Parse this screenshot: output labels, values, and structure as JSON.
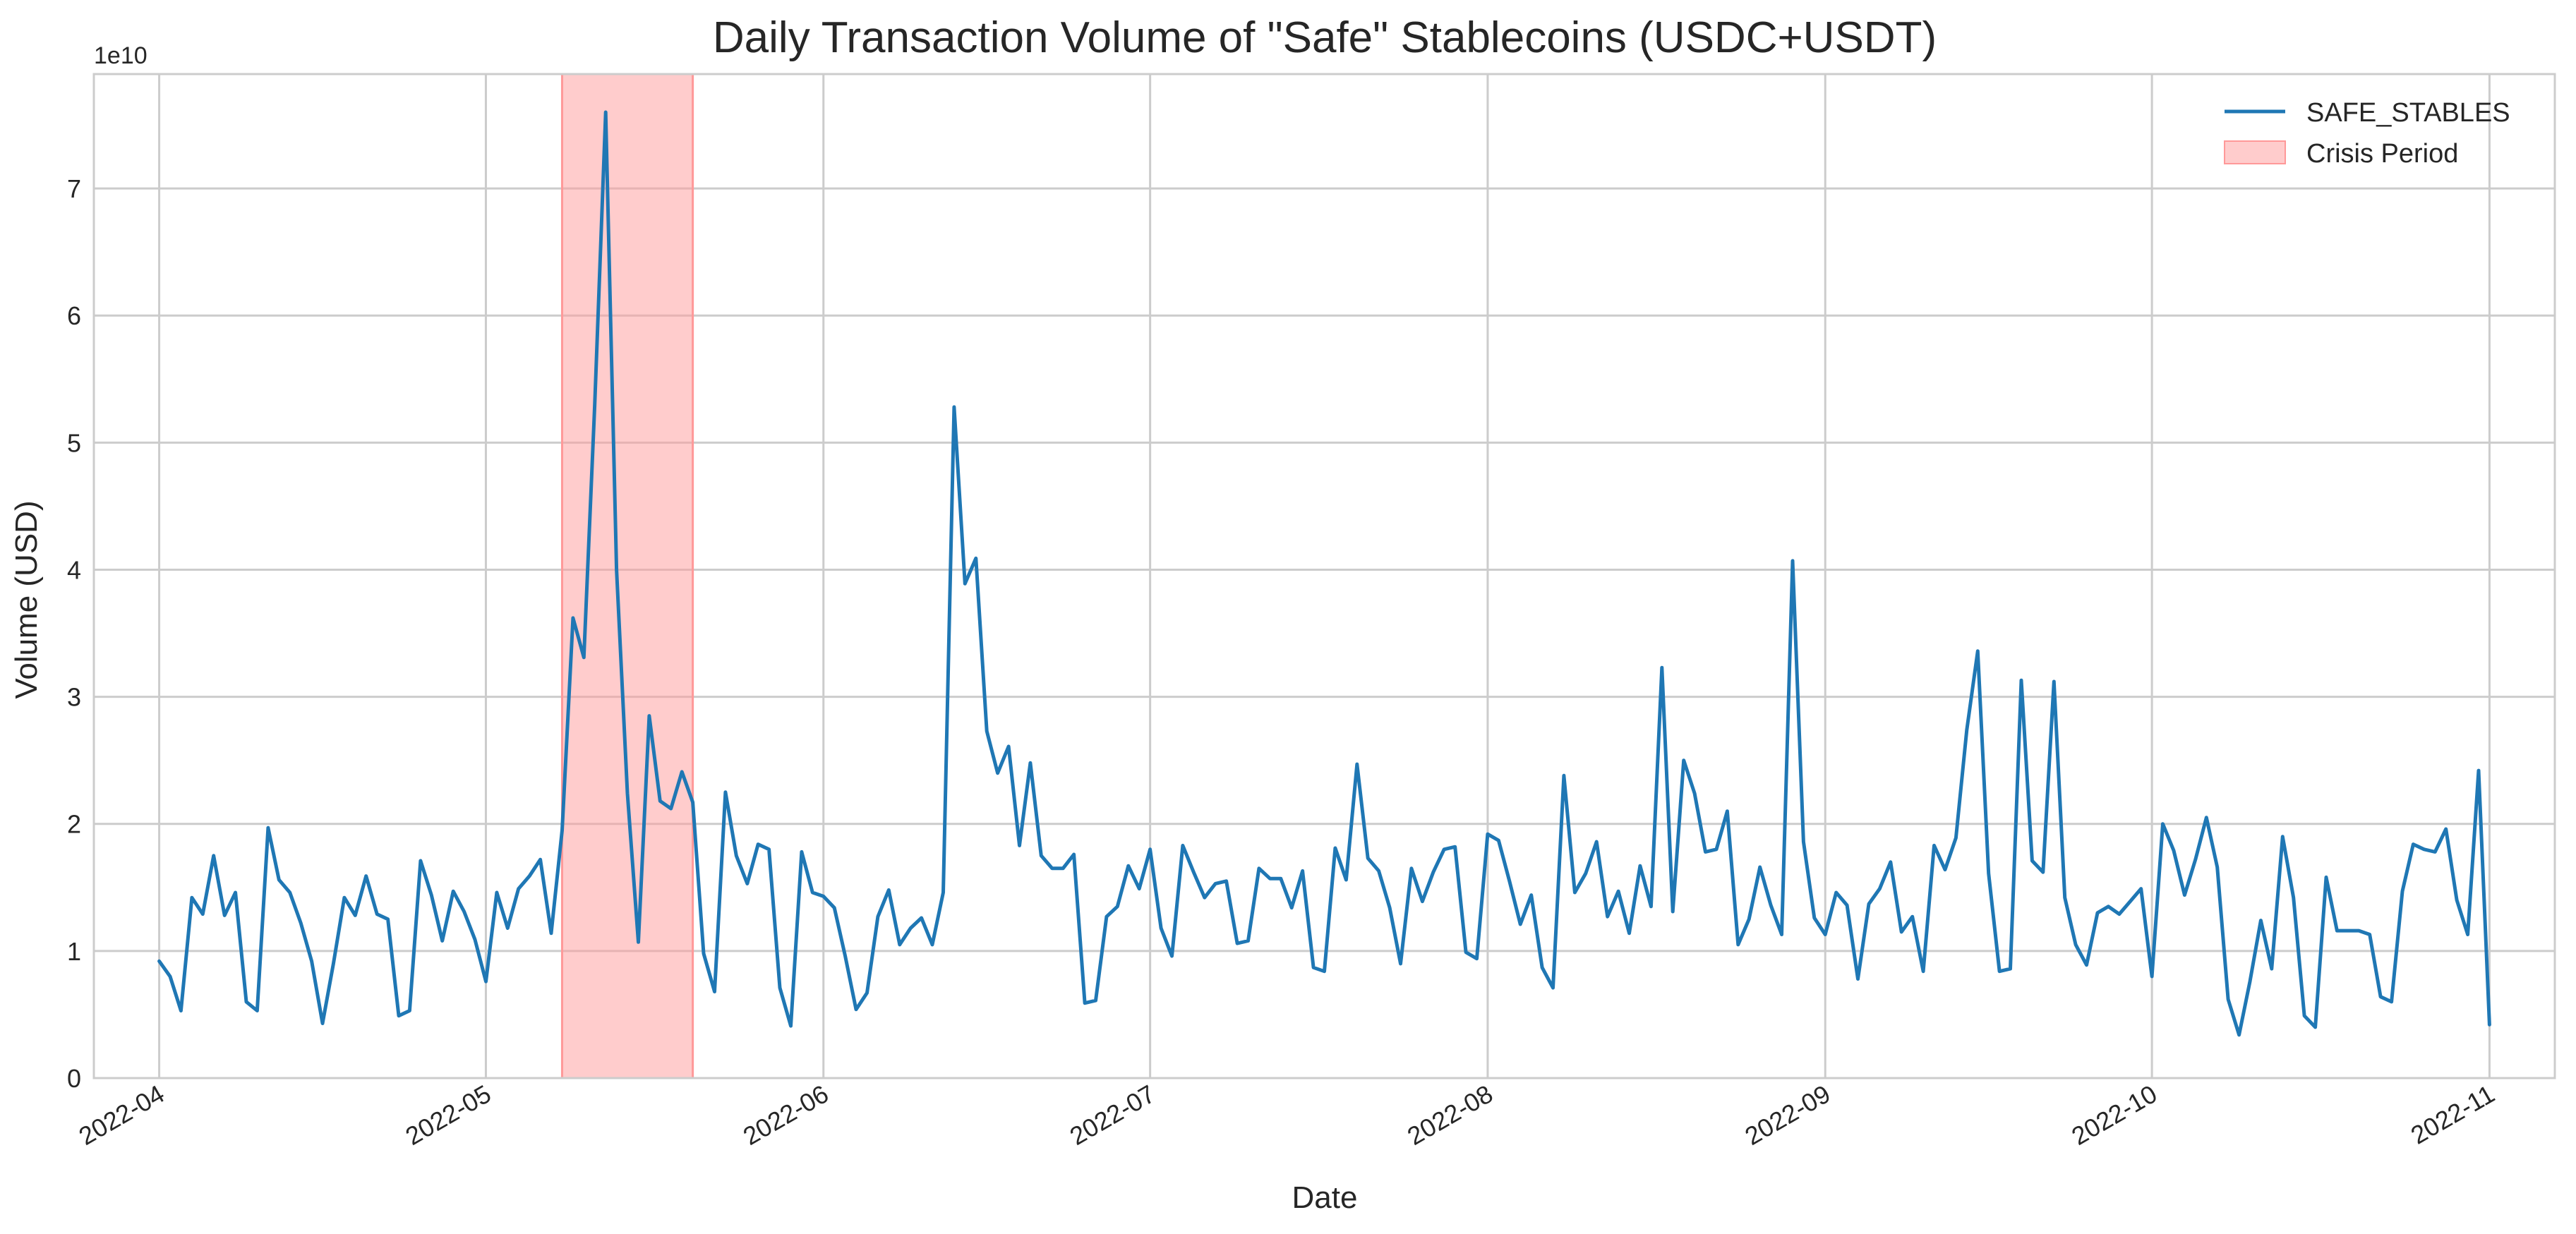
{
  "chart_data": {
    "type": "line",
    "title": "Daily Transaction Volume of \"Safe\" Stablecoins (USDC+USDT)",
    "xlabel": "Date",
    "ylabel": "Volume (USD)",
    "y_offset_label": "1e10",
    "y_scale_factor": 10000000000,
    "xlim": [
      "2022-03-26",
      "2022-11-07"
    ],
    "ylim": [
      0,
      79000000000
    ],
    "grid": true,
    "legend_position": "top-right",
    "x_ticks": [
      {
        "date": "2022-04-01",
        "label": "2022-04"
      },
      {
        "date": "2022-05-01",
        "label": "2022-05"
      },
      {
        "date": "2022-06-01",
        "label": "2022-06"
      },
      {
        "date": "2022-07-01",
        "label": "2022-07"
      },
      {
        "date": "2022-08-01",
        "label": "2022-08"
      },
      {
        "date": "2022-09-01",
        "label": "2022-09"
      },
      {
        "date": "2022-10-01",
        "label": "2022-10"
      },
      {
        "date": "2022-11-01",
        "label": "2022-11"
      }
    ],
    "y_ticks": [
      {
        "value": 0,
        "label": "0"
      },
      {
        "value": 10000000000,
        "label": "1"
      },
      {
        "value": 20000000000,
        "label": "2"
      },
      {
        "value": 30000000000,
        "label": "3"
      },
      {
        "value": 40000000000,
        "label": "4"
      },
      {
        "value": 50000000000,
        "label": "5"
      },
      {
        "value": 60000000000,
        "label": "6"
      },
      {
        "value": 70000000000,
        "label": "7"
      }
    ],
    "shaded_regions": [
      {
        "name": "Crisis Period",
        "start": "2022-05-08",
        "end": "2022-05-20",
        "color": "#ff9999"
      }
    ],
    "series": [
      {
        "name": "SAFE_STABLES",
        "color": "#1f77b4",
        "start_date": "2022-04-01",
        "values": [
          9200000000.0,
          8000000000.0,
          5300000000.0,
          14200000000.0,
          12900000000.0,
          17500000000.0,
          12800000000.0,
          14600000000.0,
          6000000000.0,
          5300000000.0,
          19700000000.0,
          15600000000.0,
          14600000000.0,
          12200000000.0,
          9200000000.0,
          4300000000.0,
          9000000000.0,
          14200000000.0,
          12800000000.0,
          15900000000.0,
          12900000000.0,
          12500000000.0,
          4900000000.0,
          5300000000.0,
          17100000000.0,
          14400000000.0,
          10800000000.0,
          14700000000.0,
          13100000000.0,
          10900000000.0,
          7600000000.0,
          14600000000.0,
          11800000000.0,
          14900000000.0,
          15900000000.0,
          17200000000.0,
          11400000000.0,
          19500000000.0,
          36200000000.0,
          33100000000.0,
          53000000000.0,
          76000000000.0,
          40000000000.0,
          22400000000.0,
          10700000000.0,
          28500000000.0,
          21800000000.0,
          21200000000.0,
          24100000000.0,
          21700000000.0,
          9800000000.0,
          6800000000.0,
          22500000000.0,
          17500000000.0,
          15300000000.0,
          18400000000.0,
          18000000000.0,
          7100000000.0,
          4100000000.0,
          17800000000.0,
          14600000000.0,
          14300000000.0,
          13400000000.0,
          9600000000.0,
          5400000000.0,
          6700000000.0,
          12700000000.0,
          14800000000.0,
          10500000000.0,
          11800000000.0,
          12600000000.0,
          10500000000.0,
          14600000000.0,
          52800000000.0,
          38900000000.0,
          40900000000.0,
          27300000000.0,
          24000000000.0,
          26100000000.0,
          18300000000.0,
          24800000000.0,
          17500000000.0,
          16500000000.0,
          16500000000.0,
          17600000000.0,
          5900000000.0,
          6100000000.0,
          12700000000.0,
          13500000000.0,
          16700000000.0,
          14900000000.0,
          18000000000.0,
          11800000000.0,
          9600000000.0,
          18300000000.0,
          16200000000.0,
          14200000000.0,
          15300000000.0,
          15500000000.0,
          10600000000.0,
          10800000000.0,
          16500000000.0,
          15700000000.0,
          15700000000.0,
          13400000000.0,
          16300000000.0,
          8700000000.0,
          8400000000.0,
          18100000000.0,
          15600000000.0,
          24700000000.0,
          17300000000.0,
          16300000000.0,
          13400000000.0,
          9000000000.0,
          16500000000.0,
          13900000000.0,
          16200000000.0,
          18000000000.0,
          18200000000.0,
          9900000000.0,
          9400000000.0,
          19200000000.0,
          18700000000.0,
          15500000000.0,
          12100000000.0,
          14400000000.0,
          8700000000.0,
          7100000000.0,
          23800000000.0,
          14600000000.0,
          16100000000.0,
          18600000000.0,
          12700000000.0,
          14700000000.0,
          11400000000.0,
          16700000000.0,
          13500000000.0,
          32300000000.0,
          13100000000.0,
          25000000000.0,
          22400000000.0,
          17800000000.0,
          18000000000.0,
          21000000000.0,
          10500000000.0,
          12500000000.0,
          16600000000.0,
          13600000000.0,
          11300000000.0,
          40700000000.0,
          18600000000.0,
          12600000000.0,
          11300000000.0,
          14600000000.0,
          13600000000.0,
          7800000000.0,
          13700000000.0,
          14900000000.0,
          17000000000.0,
          11500000000.0,
          12700000000.0,
          8400000000.0,
          18300000000.0,
          16400000000.0,
          18900000000.0,
          27400000000.0,
          33600000000.0,
          16100000000.0,
          8400000000.0,
          8600000000.0,
          31300000000.0,
          17100000000.0,
          16200000000.0,
          31200000000.0,
          14200000000.0,
          10500000000.0,
          8900000000.0,
          13000000000.0,
          13500000000.0,
          12900000000.0,
          13900000000.0,
          14900000000.0,
          8000000000.0,
          20000000000.0,
          17900000000.0,
          14400000000.0,
          17200000000.0,
          20500000000.0,
          16600000000.0,
          6200000000.0,
          3400000000.0,
          7600000000.0,
          12400000000.0,
          8600000000.0,
          19000000000.0,
          14200000000.0,
          4900000000.0,
          4000000000.0,
          15800000000.0,
          11600000000.0,
          11600000000.0,
          11600000000.0,
          11300000000.0,
          6400000000.0,
          6000000000.0,
          14700000000.0,
          18400000000.0,
          18000000000.0,
          17800000000.0,
          19600000000.0,
          14000000000.0,
          11300000000.0,
          24200000000.0,
          4200000000.0
        ]
      }
    ],
    "legend": [
      {
        "label": "SAFE_STABLES",
        "kind": "line",
        "color": "#1f77b4"
      },
      {
        "label": "Crisis Period",
        "kind": "patch",
        "color": "#ff9999"
      }
    ]
  }
}
